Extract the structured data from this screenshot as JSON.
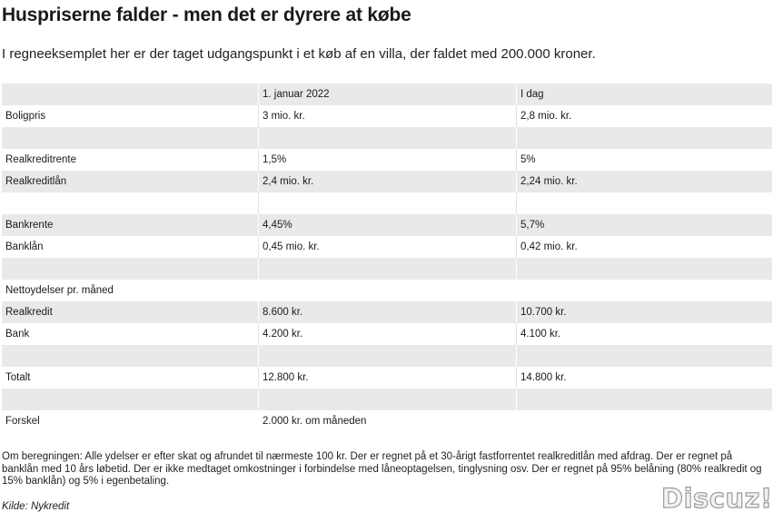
{
  "title": "Huspriserne falder - men det er dyrere at købe",
  "subtitle": "I regneeksemplet her er der taget udgangspunkt i et køb af en villa, der faldet med 200.000 kroner.",
  "table": {
    "header": [
      "",
      "1. januar 2022",
      "I dag"
    ],
    "rows": [
      [
        "Boligpris",
        "3 mio. kr.",
        "2,8 mio. kr."
      ],
      [
        "",
        "",
        ""
      ],
      [
        "Realkreditrente",
        "1,5%",
        "5%"
      ],
      [
        "Realkreditlån",
        "2,4 mio. kr.",
        "2,24 mio. kr."
      ],
      [
        "",
        "",
        ""
      ],
      [
        "Bankrente",
        "4,45%",
        "5,7%"
      ],
      [
        "Banklån",
        "0,45 mio. kr.",
        "0,42 mio. kr."
      ],
      [
        "",
        "",
        ""
      ],
      [
        "Nettoydelser pr. måned"
      ],
      [
        "Realkredit",
        "8.600 kr.",
        "10.700 kr."
      ],
      [
        "Bank",
        "4.200 kr.",
        "4.100 kr."
      ],
      [
        "",
        "",
        ""
      ],
      [
        "Totalt",
        "12.800 kr.",
        "14.800 kr."
      ],
      [
        "",
        "",
        ""
      ],
      [
        "Forskel",
        "2.000 kr. om måneden"
      ]
    ]
  },
  "footnote": "Om beregningen: Alle ydelser er efter skat og afrundet til nærmeste 100 kr. Der er regnet på et 30-årigt fastforrentet realkreditlån med afdrag. Der er regnet på banklån med 10 års løbetid. Der er ikke medtaget omkostninger i forbindelse med låneoptagelsen, tinglysning osv. Der er regnet på 95% belåning (80% realkredit og 15% banklån) og 5% i egenbetaling.",
  "source": "Kilde: Nykredit",
  "watermark": "Discuz!"
}
